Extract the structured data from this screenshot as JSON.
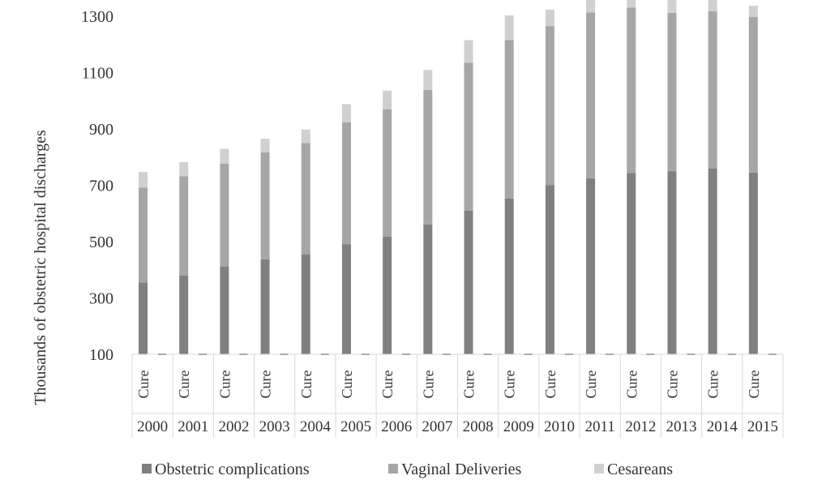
{
  "chart_data": {
    "type": "bar",
    "stacked": true,
    "ylabel": "Thousands of obstetric hospital discharges",
    "ylim": [
      100,
      1300
    ],
    "yticks": [
      "100",
      "300",
      "500",
      "700",
      "900",
      "1100",
      "1300"
    ],
    "grid": false,
    "legend_position": "bottom",
    "x_inner_label": "Cure",
    "categories": [
      "2000",
      "2001",
      "2002",
      "2003",
      "2004",
      "2005",
      "2006",
      "2007",
      "2008",
      "2009",
      "2010",
      "2011",
      "2012",
      "2013",
      "2014",
      "2015"
    ],
    "series": [
      {
        "name": "Obstetric complications",
        "color": "#808080",
        "values": [
          255,
          280,
          312,
          337,
          355,
          391,
          418,
          461,
          510,
          553,
          600,
          625,
          643,
          650,
          660,
          645
        ]
      },
      {
        "name": "Vaginal Deliveries",
        "color": "#a6a6a6",
        "values": [
          337,
          352,
          365,
          380,
          395,
          432,
          452,
          478,
          525,
          562,
          565,
          588,
          588,
          562,
          558,
          552
        ]
      },
      {
        "name": "Cesareans",
        "color": "#d0d0d0",
        "values": [
          55,
          50,
          52,
          48,
          48,
          65,
          66,
          70,
          80,
          88,
          58,
          58,
          55,
          47,
          43,
          40
        ]
      }
    ]
  }
}
